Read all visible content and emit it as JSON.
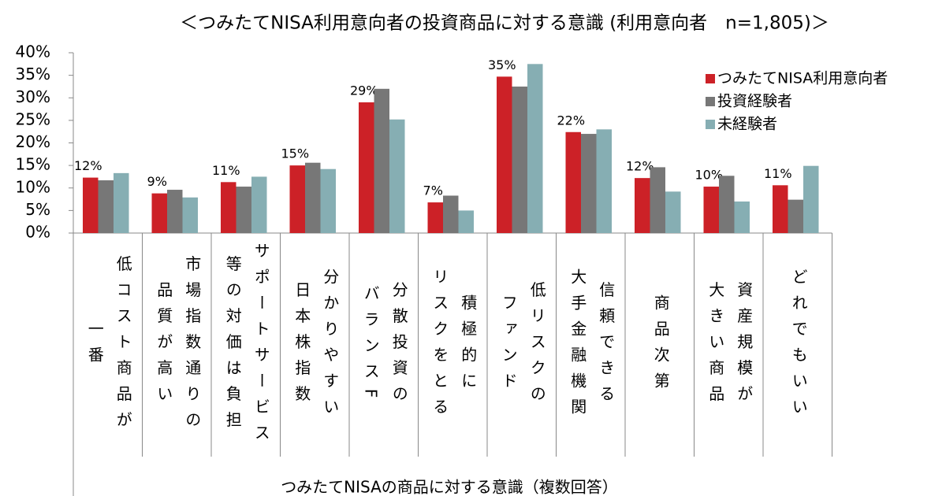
{
  "chart_data": {
    "type": "bar",
    "title": "＜つみたてNISA利用意向者の投資商品に対する意識 (利用意向者　n=1,805)＞",
    "x_label": "つみたてNISAの商品に対する意識（複数回答）",
    "categories": [
      [
        "低コスト商品が",
        "一番"
      ],
      [
        "市場指数通りの",
        "品質が高い"
      ],
      [
        "サポートサービス",
        "等の対価は負担"
      ],
      [
        "分かりやすい",
        "日本株指数"
      ],
      [
        "分散投資の",
        "バランスF"
      ],
      [
        "積極的に",
        "リスクをとる"
      ],
      [
        "低リスクの",
        "ファンド"
      ],
      [
        "信頼できる",
        "大手金融機関"
      ],
      [
        "商品次第"
      ],
      [
        "資産規模が",
        "大きい商品"
      ],
      [
        "どれでもいい"
      ]
    ],
    "series": [
      {
        "name": "つみたてNISA利用意向者",
        "color": "#cc2127",
        "values": [
          12.3,
          8.8,
          11.3,
          15.0,
          29.0,
          6.8,
          34.7,
          22.4,
          12.2,
          10.3,
          10.6
        ],
        "value_labels": [
          "12%",
          "9%",
          "11%",
          "15%",
          "29%",
          "7%",
          "35%",
          "22%",
          "12%",
          "10%",
          "11%"
        ]
      },
      {
        "name": "投資経験者",
        "color": "#777777",
        "values": [
          11.7,
          9.6,
          10.3,
          15.6,
          32.0,
          8.3,
          32.5,
          22.0,
          14.6,
          12.7,
          7.4
        ]
      },
      {
        "name": "未経験者",
        "color": "#86aeb3",
        "values": [
          13.3,
          7.9,
          12.5,
          14.2,
          25.2,
          5.0,
          37.5,
          23.0,
          9.2,
          7.0,
          14.9
        ]
      }
    ],
    "ylim": [
      0,
      40
    ],
    "yticks": [
      {
        "value": 0,
        "label": "0%"
      },
      {
        "value": 5,
        "label": "5%"
      },
      {
        "value": 10,
        "label": "10%"
      },
      {
        "value": 15,
        "label": "15%"
      },
      {
        "value": 20,
        "label": "20%"
      },
      {
        "value": 25,
        "label": "25%"
      },
      {
        "value": 30,
        "label": "30%"
      },
      {
        "value": 35,
        "label": "35%"
      },
      {
        "value": 40,
        "label": "40%"
      }
    ],
    "legend": "top-right"
  }
}
